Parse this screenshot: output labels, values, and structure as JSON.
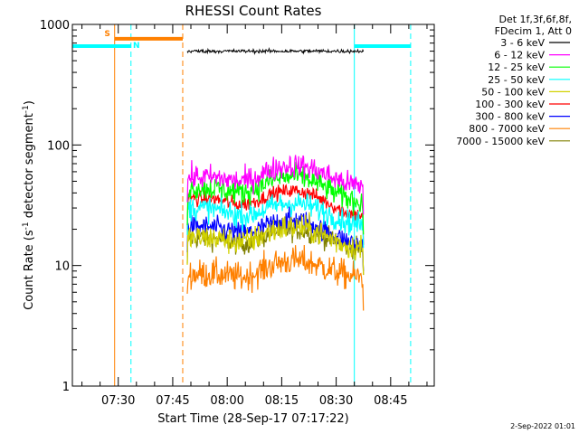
{
  "chart_data": {
    "type": "line",
    "title": "RHESSI Count Rates",
    "xlabel": "Start Time (28-Sep-17 07:17:22)",
    "ylabel_main": "Count Rate (s",
    "ylabel_sup1": "-1",
    "ylabel_mid": " detector segment",
    "ylabel_sup2": "-1",
    "ylabel_end": ")",
    "y_scale": "log",
    "x_range": [
      "07:17:22",
      "08:57:00"
    ],
    "ylim": [
      1,
      1000
    ],
    "x_ticks": [
      "07:30",
      "07:45",
      "08:00",
      "08:15",
      "08:30",
      "08:45"
    ],
    "y_ticks": [
      "1",
      "10",
      "100",
      "1000"
    ],
    "grid": false,
    "legend_position": "right",
    "legend_header": [
      "Det 1f,3f,6f,8f,",
      "FDecim 1, Att 0"
    ],
    "data_window": [
      "07:49:00",
      "08:37:30"
    ],
    "bump_peak_time": "08:18",
    "series": [
      {
        "name": "3 - 6 keV",
        "color": "#000000",
        "start": 600,
        "peak": 600,
        "end": 600,
        "noise": 0.015
      },
      {
        "name": "6 - 12 keV",
        "color": "#ff00ff",
        "start": 54,
        "peak": 68,
        "end": 46,
        "noise": 0.1
      },
      {
        "name": "12 - 25 keV",
        "color": "#00ff00",
        "start": 44,
        "peak": 55,
        "end": 34,
        "noise": 0.1
      },
      {
        "name": "25 - 50 keV",
        "color": "#00ffff",
        "start": 30,
        "peak": 33,
        "end": 22,
        "noise": 0.1
      },
      {
        "name": "50 - 100 keV",
        "color": "#d2d200",
        "start": 17,
        "peak": 21,
        "end": 14,
        "noise": 0.11
      },
      {
        "name": "100 - 300 keV",
        "color": "#ff0000",
        "start": 36,
        "peak": 42,
        "end": 26,
        "noise": 0.06
      },
      {
        "name": "300 - 800 keV",
        "color": "#0000ff",
        "start": 21,
        "peak": 24,
        "end": 15,
        "noise": 0.09
      },
      {
        "name": "800 - 7000 keV",
        "color": "#ff8000",
        "start": 8.5,
        "peak": 11,
        "end": 8,
        "noise": 0.12
      },
      {
        "name": "7000 - 15000 keV",
        "color": "#808000",
        "start": 17,
        "peak": 20,
        "end": 14,
        "noise": 0.09
      }
    ],
    "annotations": [
      {
        "kind": "vline",
        "time": "07:17:22",
        "color": "#00ffff",
        "style": "solid"
      },
      {
        "kind": "vline",
        "time": "07:29:00",
        "color": "#ff8000",
        "style": "solid"
      },
      {
        "kind": "vline",
        "time": "07:33:30",
        "color": "#00ffff",
        "style": "dashed"
      },
      {
        "kind": "vline",
        "time": "07:47:45",
        "color": "#ff8000",
        "style": "dashed"
      },
      {
        "kind": "vline",
        "time": "08:35:00",
        "color": "#00ffff",
        "style": "solid"
      },
      {
        "kind": "vline",
        "time": "08:50:30",
        "color": "#00ffff",
        "style": "dashed"
      },
      {
        "kind": "hbar",
        "from": "07:17:22",
        "to": "07:33:30",
        "value": 660,
        "color": "#00ffff"
      },
      {
        "kind": "hbar",
        "from": "07:29:00",
        "to": "07:47:45",
        "value": 760,
        "color": "#ff8000"
      },
      {
        "kind": "hbar",
        "from": "08:35:00",
        "to": "08:50:30",
        "value": 660,
        "color": "#00ffff"
      }
    ],
    "marks": [
      {
        "text": "S",
        "color": "#ff8000",
        "time": "07:27:00",
        "value": 800
      },
      {
        "text": "N",
        "color": "#00ffff",
        "time": "07:35:00",
        "value": 640
      }
    ]
  },
  "timestamp": "2-Sep-2022 01:01"
}
